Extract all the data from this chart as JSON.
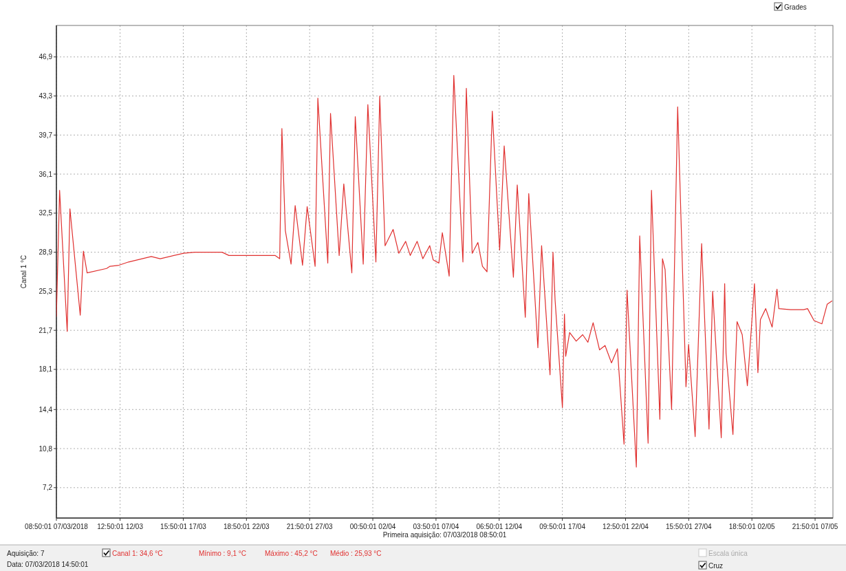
{
  "chart_data": {
    "type": "line",
    "xlabel": "Primeira aquisição: 07/03/2018 08:50:01",
    "ylabel": "Canal 1 °C",
    "annotations": [
      "Aquisição: 7",
      "Data: 07/03/2018 14:50:01",
      "Canal 1: 34,6 °C",
      "Mínimo : 9,1 °C",
      "Máximo : 45,2 °C",
      "Médio : 25,93 °C",
      "Escala única",
      "Cruz",
      "Grades"
    ],
    "xlim": [
      "2018-03-07T08:50",
      "2018-05-09T08:35"
    ],
    "xticks": [
      {
        "value": "2018-03-07T08:50",
        "label": "08:50:01 07/03/2018"
      },
      {
        "value": "2018-03-12T12:50",
        "label": "12:50:01 12/03"
      },
      {
        "value": "2018-03-17T15:50",
        "label": "15:50:01 17/03"
      },
      {
        "value": "2018-03-22T18:50",
        "label": "18:50:01 22/03"
      },
      {
        "value": "2018-03-27T21:50",
        "label": "21:50:01 27/03"
      },
      {
        "value": "2018-04-02T00:50",
        "label": "00:50:01 02/04"
      },
      {
        "value": "2018-04-07T03:50",
        "label": "03:50:01 07/04"
      },
      {
        "value": "2018-04-12T06:50",
        "label": "06:50:01 12/04"
      },
      {
        "value": "2018-04-17T09:50",
        "label": "09:50:01 17/04"
      },
      {
        "value": "2018-04-22T12:50",
        "label": "12:50:01 22/04"
      },
      {
        "value": "2018-04-27T15:50",
        "label": "15:50:01 27/04"
      },
      {
        "value": "2018-05-02T18:50",
        "label": "18:50:01 02/05"
      },
      {
        "value": "2018-05-07T21:50",
        "label": "21:50:01 07/05"
      }
    ],
    "ylim": [
      4.4,
      49.8
    ],
    "yticks": [
      {
        "value": 7.2,
        "label": "7,2"
      },
      {
        "value": 10.8,
        "label": "10,8"
      },
      {
        "value": 14.4,
        "label": "14,4"
      },
      {
        "value": 18.1,
        "label": "18,1"
      },
      {
        "value": 21.7,
        "label": "21,7"
      },
      {
        "value": 25.3,
        "label": "25,3"
      },
      {
        "value": 28.9,
        "label": "28,9"
      },
      {
        "value": 32.5,
        "label": "32,5"
      },
      {
        "value": 36.1,
        "label": "36,1"
      },
      {
        "value": 39.7,
        "label": "39,7"
      },
      {
        "value": 43.3,
        "label": "43,3"
      },
      {
        "value": 46.9,
        "label": "46,9"
      }
    ],
    "grid": true,
    "marker": "none",
    "line_style": "solid",
    "series": [
      {
        "color": "#e0302f",
        "x": [
          "2018-03-07T08:50",
          "2018-03-07T15:05",
          "2018-03-08T05:50",
          "2018-03-08T11:10",
          "2018-03-09T07:15",
          "2018-03-09T13:25",
          "2018-03-09T20:40",
          "2018-03-11T10:30",
          "2018-03-11T17:15",
          "2018-03-12T10:40",
          "2018-03-13T05:20",
          "2018-03-15T01:35",
          "2018-03-15T18:55",
          "2018-03-17T16:30",
          "2018-03-18T13:50",
          "2018-03-20T19:25",
          "2018-03-21T08:45",
          "2018-03-24T13:05",
          "2018-03-25T02:30",
          "2018-03-25T11:30",
          "2018-03-25T15:50",
          "2018-03-25T22:30",
          "2018-03-26T09:40",
          "2018-03-26T17:40",
          "2018-03-27T08:00",
          "2018-03-27T17:00",
          "2018-03-28T08:30",
          "2018-03-28T13:50",
          "2018-03-29T09:10",
          "2018-03-29T14:30",
          "2018-03-30T07:20",
          "2018-03-30T16:20",
          "2018-03-31T08:00",
          "2018-03-31T14:40",
          "2018-04-01T06:10",
          "2018-04-01T15:10",
          "2018-04-02T06:50",
          "2018-04-02T14:20",
          "2018-04-03T00:40",
          "2018-04-03T16:20",
          "2018-04-04T03:25",
          "2018-04-04T16:45",
          "2018-04-05T01:45",
          "2018-04-05T15:10",
          "2018-04-06T02:15",
          "2018-04-06T15:40",
          "2018-04-06T22:20",
          "2018-04-07T09:25",
          "2018-04-07T16:10",
          "2018-04-08T05:30",
          "2018-04-08T14:30",
          "2018-04-09T08:15",
          "2018-04-09T14:55",
          "2018-04-10T02:15",
          "2018-04-10T13:20",
          "2018-04-10T22:15",
          "2018-04-11T07:10",
          "2018-04-11T17:25",
          "2018-04-12T07:45",
          "2018-04-12T16:35",
          "2018-04-13T10:30",
          "2018-04-13T18:00",
          "2018-04-14T09:40",
          "2018-04-14T16:25",
          "2018-04-15T10:10",
          "2018-04-15T17:25",
          "2018-04-16T09:50",
          "2018-04-16T15:35",
          "2018-04-16T19:40",
          "2018-04-17T09:55",
          "2018-04-17T13:55",
          "2018-04-17T16:20",
          "2018-04-18T00:00",
          "2018-04-18T12:45",
          "2018-04-19T01:25",
          "2018-04-19T11:30",
          "2018-04-19T21:45",
          "2018-04-20T10:15",
          "2018-04-20T20:55",
          "2018-04-21T09:30",
          "2018-04-21T21:00",
          "2018-04-22T09:55",
          "2018-04-22T15:45",
          "2018-04-23T09:50",
          "2018-04-23T16:25",
          "2018-04-24T08:45",
          "2018-04-24T15:20",
          "2018-04-25T07:40",
          "2018-04-25T12:45",
          "2018-04-25T17:50",
          "2018-04-26T06:30",
          "2018-04-26T18:20",
          "2018-04-27T10:30",
          "2018-04-27T15:35",
          "2018-04-28T04:20",
          "2018-04-28T17:00",
          "2018-04-29T07:20",
          "2018-04-29T14:25",
          "2018-04-30T07:10",
          "2018-04-30T13:50",
          "2018-04-30T16:30",
          "2018-05-01T05:55",
          "2018-05-01T13:55",
          "2018-05-02T00:00",
          "2018-05-02T10:00",
          "2018-05-02T23:50",
          "2018-05-03T06:30",
          "2018-05-03T11:25",
          "2018-05-03T21:45",
          "2018-05-04T10:15",
          "2018-05-04T19:40",
          "2018-05-04T23:15",
          "2018-05-05T22:10",
          "2018-05-06T23:30",
          "2018-05-07T07:10",
          "2018-05-07T19:50",
          "2018-05-08T11:10",
          "2018-05-08T21:20",
          "2018-05-09T06:40"
        ],
        "values": [
          23.0,
          34.6,
          21.6,
          32.9,
          23.1,
          29.0,
          27.0,
          27.4,
          27.6,
          27.7,
          28.0,
          28.5,
          28.3,
          28.8,
          28.9,
          28.9,
          28.6,
          28.6,
          28.6,
          28.3,
          40.3,
          30.9,
          27.8,
          33.2,
          27.7,
          33.1,
          27.6,
          43.1,
          27.9,
          41.7,
          28.6,
          35.2,
          27.0,
          41.4,
          27.8,
          42.5,
          28.0,
          43.3,
          29.5,
          31.0,
          28.8,
          29.9,
          28.6,
          29.9,
          28.3,
          29.5,
          28.2,
          27.9,
          30.7,
          26.7,
          45.2,
          28.0,
          44.0,
          28.8,
          29.8,
          27.6,
          27.1,
          41.9,
          29.1,
          38.7,
          26.6,
          35.1,
          22.9,
          34.3,
          20.1,
          29.5,
          17.6,
          28.9,
          24.5,
          14.6,
          23.2,
          19.3,
          21.5,
          20.7,
          21.3,
          20.6,
          22.4,
          19.9,
          20.3,
          18.7,
          20.0,
          11.2,
          25.4,
          9.1,
          30.4,
          11.3,
          34.6,
          13.5,
          28.3,
          27.3,
          14.4,
          42.3,
          16.5,
          20.4,
          11.9,
          29.7,
          12.6,
          25.3,
          11.8,
          26.0,
          19.6,
          12.1,
          22.5,
          21.3,
          16.6,
          26.0,
          17.8,
          22.7,
          23.7,
          22.0,
          25.5,
          23.7,
          23.6,
          23.6,
          23.7,
          22.6,
          22.3,
          24.1,
          24.4
        ]
      }
    ]
  }
}
